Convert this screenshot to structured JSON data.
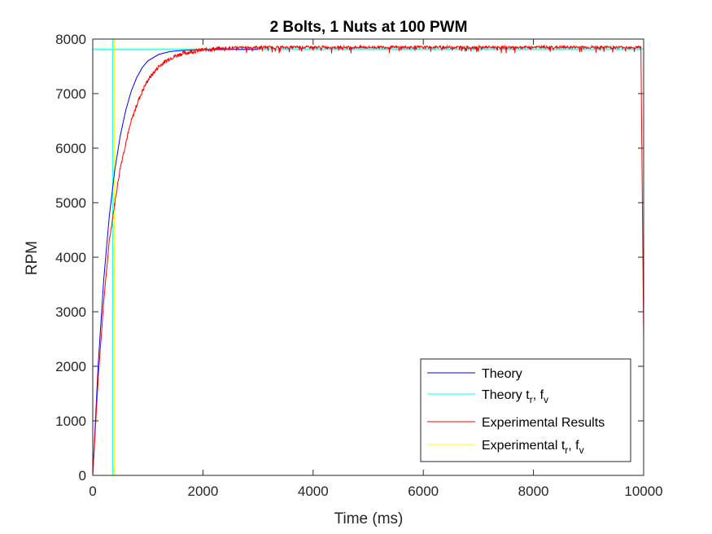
{
  "chart_data": {
    "type": "line",
    "title": "2 Bolts, 1 Nuts at 100 PWM",
    "xlabel": "Time (ms)",
    "ylabel": "RPM",
    "xlim": [
      0,
      10000
    ],
    "ylim": [
      0,
      8000
    ],
    "x_ticks": [
      0,
      2000,
      4000,
      6000,
      8000,
      10000
    ],
    "y_ticks": [
      0,
      1000,
      2000,
      3000,
      4000,
      5000,
      6000,
      7000,
      8000
    ],
    "grid": false,
    "legend_position": "bottom-right",
    "colors": {
      "theory": "#0000ff",
      "theory_tr_fv": "#00ffff",
      "experimental": "#ff0000",
      "experimental_tr_fv": "#ffff00"
    },
    "series": [
      {
        "name": "Theory",
        "x": [
          0,
          100,
          200,
          300,
          400,
          500,
          600,
          700,
          800,
          900,
          1000,
          1200,
          1400,
          1600,
          1800,
          2000,
          2200,
          2400,
          2600,
          2800,
          3000
        ],
        "values": [
          0,
          2060,
          3600,
          4750,
          5600,
          6230,
          6700,
          7050,
          7300,
          7480,
          7600,
          7720,
          7770,
          7790,
          7800,
          7805,
          7808,
          7810,
          7810,
          7810,
          7810
        ]
      },
      {
        "name": "Theory t_r, f_v",
        "segments": [
          {
            "x": [
              0,
              10000
            ],
            "values": [
              7810,
              7810
            ]
          },
          {
            "x": [
              360,
              360
            ],
            "values": [
              0,
              8000
            ]
          }
        ]
      },
      {
        "name": "Experimental Results",
        "x": [
          0,
          100,
          200,
          300,
          400,
          500,
          600,
          700,
          800,
          900,
          1000,
          1200,
          1400,
          1600,
          1800,
          2000,
          2200,
          2400,
          2600,
          3000,
          4000,
          5000,
          6000,
          7000,
          8000,
          9000,
          9950,
          10000
        ],
        "values": [
          0,
          1800,
          3200,
          4300,
          5000,
          5650,
          6100,
          6500,
          6800,
          7050,
          7250,
          7500,
          7650,
          7730,
          7770,
          7800,
          7820,
          7830,
          7840,
          7850,
          7850,
          7850,
          7850,
          7850,
          7850,
          7850,
          7850,
          2500
        ]
      },
      {
        "name": "Experimental t_r, f_v",
        "segments": [
          {
            "x": [
              0,
              10000
            ],
            "values": [
              7830,
              7830
            ]
          },
          {
            "x": [
              390,
              390
            ],
            "values": [
              0,
              8000
            ]
          }
        ]
      }
    ],
    "legend": [
      {
        "label": "Theory",
        "sub": "",
        "rest": ""
      },
      {
        "label": "Theory t",
        "sub": "r",
        "rest": ", f",
        "sub2": "v"
      },
      {
        "label": "Experimental Results",
        "sub": "",
        "rest": ""
      },
      {
        "label": "Experimental t",
        "sub": "r",
        "rest": ", f",
        "sub2": "v"
      }
    ]
  }
}
